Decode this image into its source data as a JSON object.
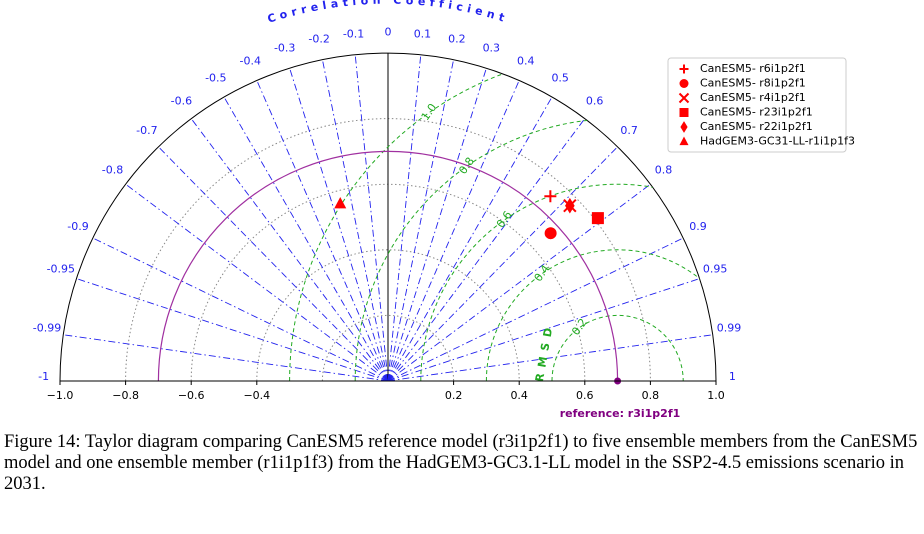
{
  "chart_data": {
    "type": "taylor",
    "title": "Correlation Coefficient",
    "rmsd_label": "RMSD",
    "reference_label": "reference: r3i1p2f1",
    "reference_std": 0.7,
    "xlim": [
      -1,
      1
    ],
    "xticks": [
      {
        "value": -1,
        "label": "−1.0"
      },
      {
        "value": -0.8,
        "label": "−0.8"
      },
      {
        "value": -0.6,
        "label": "−0.6"
      },
      {
        "value": -0.4,
        "label": "−0.4"
      },
      0.2,
      0.4,
      0.6,
      0.8,
      {
        "value": 1,
        "label": "1.0"
      }
    ],
    "correlation_ticks": [
      -1,
      -0.99,
      -0.95,
      -0.9,
      -0.8,
      -0.7,
      -0.6,
      -0.5,
      -0.4,
      -0.3,
      -0.2,
      -0.1,
      0,
      0.1,
      0.2,
      0.3,
      0.4,
      0.5,
      0.6,
      0.7,
      0.8,
      0.9,
      0.95,
      0.99,
      1
    ],
    "rmsd_ticks": [
      0.2,
      0.4,
      0.6,
      0.8,
      {
        "value": 1,
        "label": "1.0"
      }
    ],
    "series": [
      {
        "name": "CanESM5- r6i1p2f1",
        "marker": "plus",
        "color": "#ff0000",
        "std": 0.75,
        "correlation": 0.66
      },
      {
        "name": "CanESM5- r8i1p2f1",
        "marker": "circle",
        "color": "#ff0000",
        "std": 0.67,
        "correlation": 0.74
      },
      {
        "name": "CanESM5- r4i1p2f1",
        "marker": "cross",
        "color": "#ff0000",
        "std": 0.77,
        "correlation": 0.72
      },
      {
        "name": "CanESM5- r23i1p2f1",
        "marker": "square",
        "color": "#ff0000",
        "std": 0.81,
        "correlation": 0.79
      },
      {
        "name": "CanESM5- r22i1p2f1",
        "marker": "diamond",
        "color": "#ff0000",
        "std": 0.77,
        "correlation": 0.72
      },
      {
        "name": "HadGEM3-GC31-LL-r1i1p1f3",
        "marker": "triangle",
        "color": "#ff0000",
        "std": 0.56,
        "correlation": -0.26
      }
    ]
  },
  "caption": "Figure 14: Taylor diagram comparing CanESM5 reference model (r3i1p2f1) to five ensemble members from the CanESM5 model and one ensemble member (r1i1p1f3) from the HadGEM3-GC3.1-LL model in the SSP2-4.5 emissions scenario in 2031."
}
